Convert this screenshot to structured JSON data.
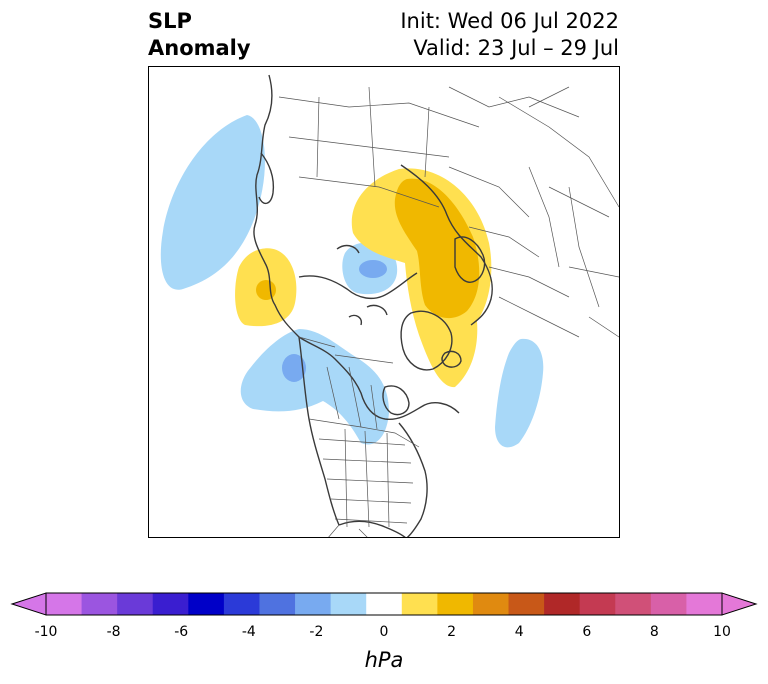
{
  "title": {
    "left_line1": "SLP",
    "left_line2": "Anomaly",
    "right_line1": "Init: Wed 06 Jul 2022",
    "right_line2": "Valid: 23 Jul – 29 Jul"
  },
  "map": {
    "projection": "north-polar-stereographic",
    "field": "sea level pressure anomaly"
  },
  "colorbar": {
    "unit_label": "hPa",
    "ticks": [
      "-10",
      "-8",
      "-6",
      "-4",
      "-2",
      "0",
      "2",
      "4",
      "6",
      "8",
      "10"
    ],
    "levels": [
      -10,
      -9,
      -8,
      -7,
      -6,
      -5,
      -4,
      -3,
      -2,
      -1,
      1,
      2,
      3,
      4,
      5,
      6,
      7,
      8,
      9,
      10
    ],
    "colors": [
      "#d576e8",
      "#9b55e0",
      "#6a3ad8",
      "#3a1ed0",
      "#0000c8",
      "#2b3ad8",
      "#4f72e0",
      "#78aaf0",
      "#a8d8f8",
      "#ffffff",
      "#ffe050",
      "#f0b800",
      "#e08a10",
      "#c85818",
      "#b02828",
      "#c43a52",
      "#d05078",
      "#d860a8",
      "#e478d8"
    ],
    "under_color": "#d576e8",
    "over_color": "#e478d8"
  },
  "anomalies": [
    {
      "sign": "negative",
      "level": -2,
      "region": "North Pacific / Gulf of Alaska"
    },
    {
      "sign": "positive",
      "level": 2,
      "region": "Northeast Siberia / Bering"
    },
    {
      "sign": "negative",
      "level": -2,
      "region": "Laptev Sea / Central Arctic"
    },
    {
      "sign": "positive",
      "level": 4,
      "region": "Barents Sea / Scandinavia"
    },
    {
      "sign": "positive",
      "level": 2,
      "region": "Greenland / Norwegian Sea"
    },
    {
      "sign": "negative",
      "level": -2,
      "region": "Western Canada"
    },
    {
      "sign": "negative",
      "level": -2,
      "region": "Central North Atlantic"
    }
  ]
}
